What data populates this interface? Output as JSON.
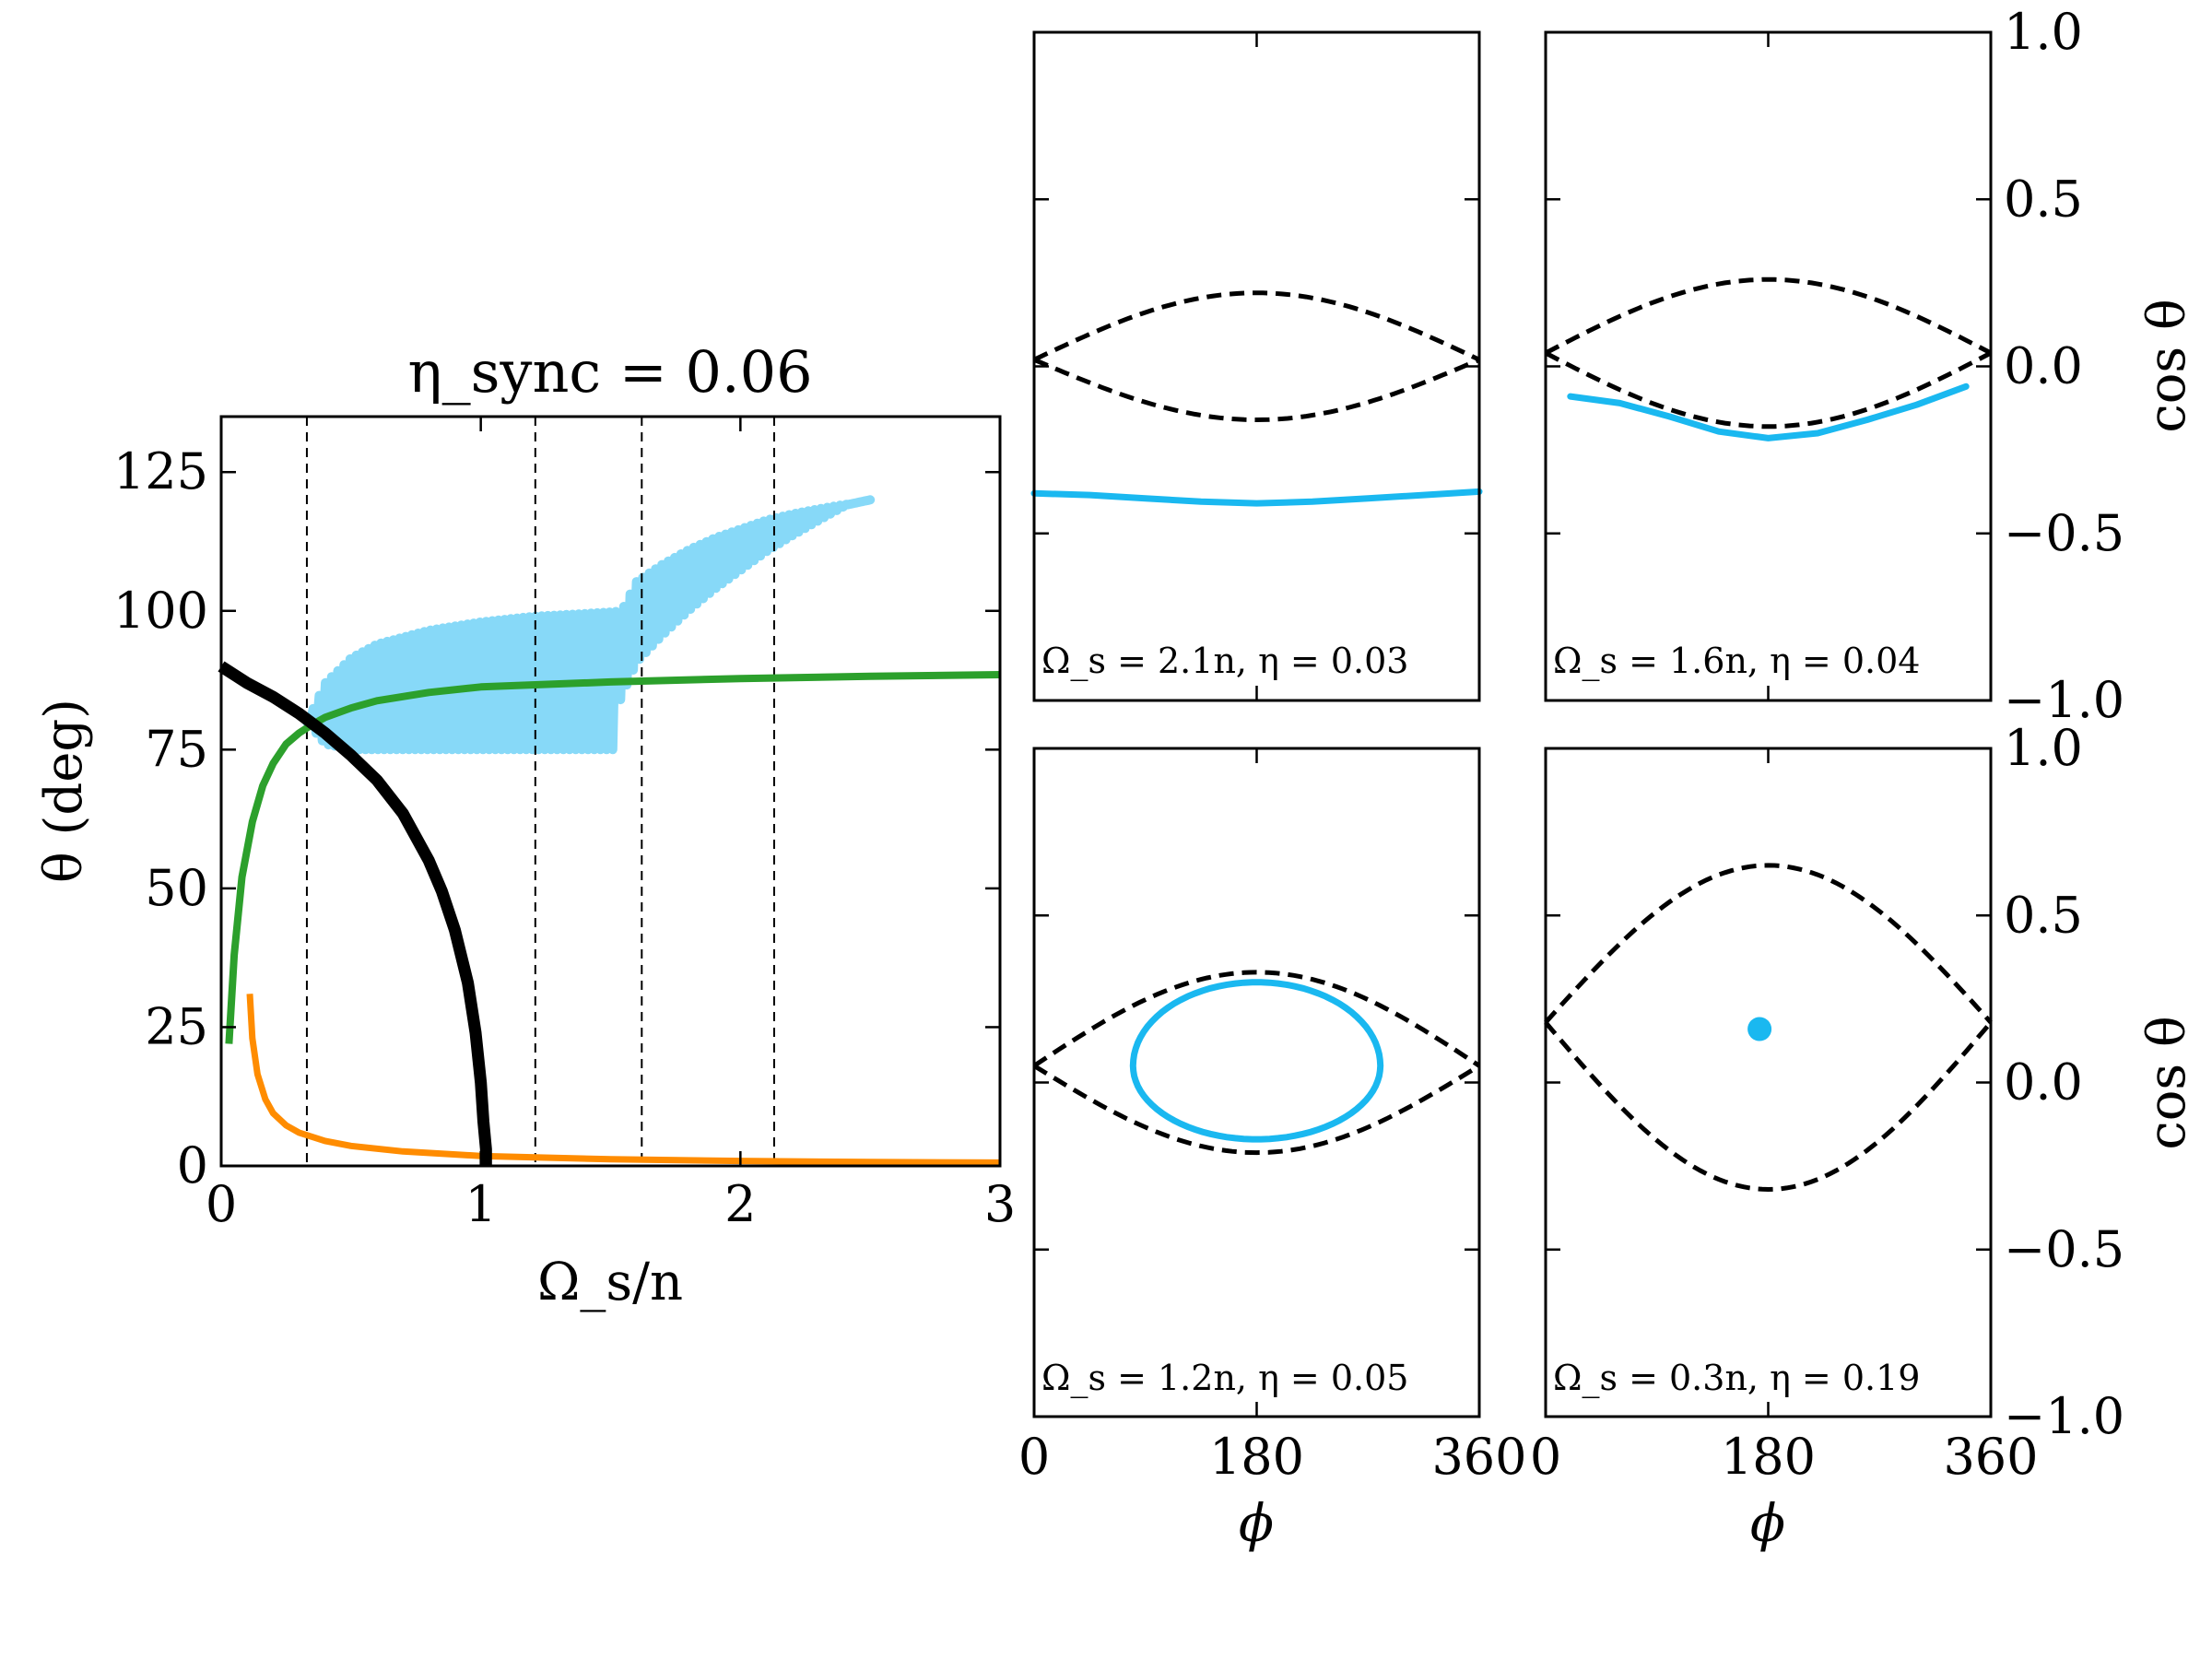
{
  "chart_data": [
    {
      "type": "line",
      "id": "main",
      "title": "η_sync = 0.06",
      "xlabel": "Ω_s/n",
      "ylabel": "θ (deg)",
      "xlim": [
        0,
        3
      ],
      "ylim": [
        0,
        135
      ],
      "xticks": [
        0,
        1,
        2,
        3
      ],
      "xtick_labels": [
        "0",
        "1",
        "2",
        "3"
      ],
      "yticks": [
        0,
        25,
        50,
        75,
        100,
        125
      ],
      "ytick_labels": [
        "0",
        "25",
        "50",
        "75",
        "100",
        "125"
      ],
      "vlines": [
        0.33,
        1.21,
        1.62,
        2.13
      ],
      "series": [
        {
          "name": "black",
          "color": "#000000",
          "x": [
            0,
            0.1,
            0.2,
            0.3,
            0.4,
            0.5,
            0.6,
            0.7,
            0.8,
            0.85,
            0.9,
            0.95,
            0.98,
            1.0,
            1.01,
            1.02,
            1.02
          ],
          "y": [
            90,
            87,
            84.5,
            81.5,
            78,
            74,
            69.5,
            63.5,
            55,
            49.5,
            42.5,
            33,
            24,
            15,
            8,
            3,
            0
          ]
        },
        {
          "name": "green",
          "color": "#2ca02c",
          "x": [
            0.03,
            0.05,
            0.08,
            0.12,
            0.16,
            0.2,
            0.25,
            0.3,
            0.35,
            0.4,
            0.5,
            0.6,
            0.8,
            1.0,
            1.5,
            2.0,
            2.5,
            3.0
          ],
          "y": [
            22,
            38,
            52,
            62,
            68.5,
            72.5,
            76,
            78,
            79.5,
            80.8,
            82.5,
            83.8,
            85.3,
            86.3,
            87.2,
            87.8,
            88.2,
            88.5
          ]
        },
        {
          "name": "orange",
          "color": "#ff8c00",
          "x": [
            0.11,
            0.12,
            0.14,
            0.17,
            0.2,
            0.25,
            0.3,
            0.4,
            0.5,
            0.7,
            1.0,
            1.5,
            2.0,
            2.5,
            3.0
          ],
          "y": [
            31,
            23,
            16.5,
            12,
            9.5,
            7.3,
            6,
            4.5,
            3.6,
            2.6,
            1.8,
            1.2,
            0.9,
            0.7,
            0.6
          ]
        },
        {
          "name": "lightblue-oscillating",
          "color": "#87d9f8",
          "oscillation_start": 0.33,
          "oscillation_end": 1.52,
          "upper_x": [
            0.33,
            0.4,
            0.5,
            0.6,
            0.8,
            1.0,
            1.2,
            1.4,
            1.5,
            1.55
          ],
          "upper_y": [
            80,
            87,
            91.5,
            94,
            96.5,
            98,
            99,
            99.5,
            99.8,
            100
          ],
          "lower_x": [
            0.33,
            0.4,
            0.5,
            0.6,
            0.8,
            1.0,
            1.2,
            1.4,
            1.5,
            1.55
          ],
          "lower_y": [
            80,
            76,
            75,
            75,
            75,
            75,
            75,
            75,
            75,
            75
          ],
          "tail_x": [
            1.52,
            1.6,
            1.7,
            1.8,
            1.9,
            2.0,
            2.1,
            2.2,
            2.3,
            2.4,
            2.5
          ],
          "tail_y": [
            90,
            98,
            102,
            105.5,
            108.5,
            111,
            113.5,
            115.5,
            117.3,
            119,
            120
          ]
        }
      ]
    },
    {
      "type": "line",
      "id": "phase-1",
      "annotation": "Ω_s = 2.1n, η = 0.03",
      "xlim": [
        0,
        360
      ],
      "ylim": [
        -1,
        1
      ],
      "separatrix_upper": [
        0.02,
        0.22,
        0.02
      ],
      "separatrix_lower": [
        0.02,
        -0.16,
        0.02
      ],
      "trajectory": {
        "kind": "curve",
        "x": [
          0,
          45,
          90,
          135,
          180,
          225,
          270,
          315,
          360
        ],
        "y": [
          -0.38,
          -0.385,
          -0.395,
          -0.405,
          -0.41,
          -0.405,
          -0.395,
          -0.385,
          -0.375
        ],
        "x_start": 5,
        "x_end": 350
      }
    },
    {
      "type": "line",
      "id": "phase-2",
      "annotation": "Ω_s = 1.6n, η = 0.04",
      "xlim": [
        0,
        360
      ],
      "ylim": [
        -1,
        1
      ],
      "separatrix_upper": [
        0.04,
        0.26,
        0.04
      ],
      "separatrix_lower": [
        0.04,
        -0.18,
        0.04
      ],
      "trajectory": {
        "kind": "curve",
        "x": [
          20,
          60,
          100,
          140,
          180,
          220,
          260,
          300,
          340
        ],
        "y": [
          -0.09,
          -0.11,
          -0.15,
          -0.195,
          -0.215,
          -0.2,
          -0.16,
          -0.115,
          -0.06
        ],
        "x_start": 10,
        "x_end": 350
      }
    },
    {
      "type": "line",
      "id": "phase-3",
      "annotation": "Ω_s = 1.2n, η = 0.05",
      "xlim": [
        0,
        360
      ],
      "ylim": [
        -1,
        1
      ],
      "separatrix_upper": [
        0.05,
        0.33,
        0.05
      ],
      "separatrix_lower": [
        0.05,
        -0.21,
        0.05
      ],
      "trajectory": {
        "kind": "ellipse",
        "center_x": 180,
        "center_y": 0.05,
        "half_width": 100,
        "upper_y": 0.3,
        "lower_y": -0.17
      }
    },
    {
      "type": "line",
      "id": "phase-4",
      "annotation": "Ω_s = 0.3n, η = 0.19",
      "xlim": [
        0,
        360
      ],
      "ylim": [
        -1,
        1
      ],
      "separatrix_upper": [
        0.18,
        0.65,
        0.18
      ],
      "separatrix_lower": [
        0.18,
        -0.32,
        0.18
      ],
      "trajectory": {
        "kind": "point",
        "x": 173,
        "y": 0.16
      }
    }
  ],
  "phase_axes": {
    "xticks": [
      0,
      180,
      360
    ],
    "xtick_labels": [
      "0",
      "180",
      "360"
    ],
    "yticks": [
      -1.0,
      -0.5,
      0.0,
      0.5,
      1.0
    ],
    "ytick_labels": [
      "−1.0",
      "−0.5",
      "0.0",
      "0.5",
      "1.0"
    ],
    "xlabel": "ϕ",
    "ylabel": "cos θ"
  },
  "colors": {
    "trajectory": "#1ab8f0",
    "separatrix": "#000000"
  }
}
